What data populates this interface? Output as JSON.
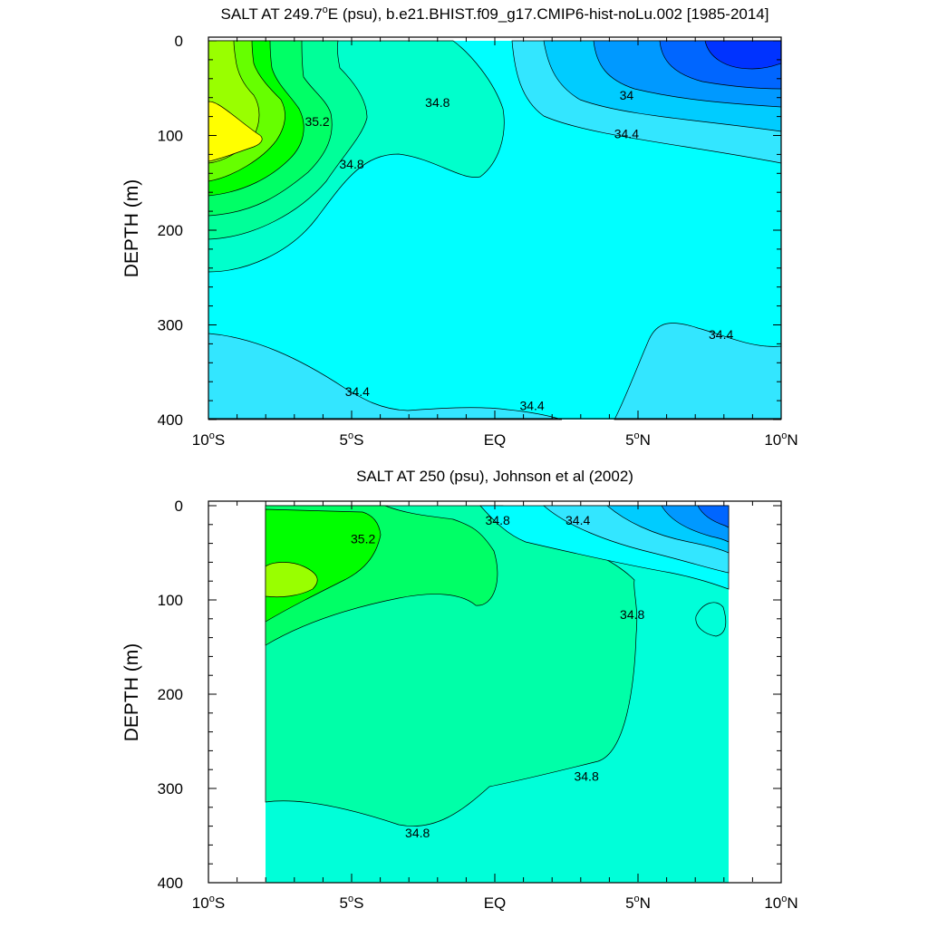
{
  "chart_data": [
    {
      "type": "heatmap",
      "title": "SALT AT 249.7°E (psu), b.e21.BHIST.f09_g17.CMIP6-hist-noLu.002 [1985-2014]",
      "title_parts": {
        "pre": "SALT AT 249.7",
        "deg": "o",
        "post": "E (psu), b.e21.BHIST.f09_g17.CMIP6-hist-noLu.002 [1985-2014]"
      },
      "xlabel": "",
      "ylabel": "DEPTH (m)",
      "xlim": [
        -10,
        10
      ],
      "ylim": [
        0,
        400
      ],
      "y_reversed": true,
      "xticks": [
        {
          "value": -10,
          "num": "10",
          "hemi": "S"
        },
        {
          "value": -5,
          "num": "5",
          "hemi": "S"
        },
        {
          "value": 0,
          "num": "EQ",
          "hemi": ""
        },
        {
          "value": 5,
          "num": "5",
          "hemi": "N"
        },
        {
          "value": 10,
          "num": "10",
          "hemi": "N"
        }
      ],
      "yticks": [
        0,
        100,
        200,
        300,
        400
      ],
      "contour_labels": [
        {
          "text": "34.8",
          "x": -2.0,
          "y": 70
        },
        {
          "text": "35.2",
          "x": -6.2,
          "y": 90
        },
        {
          "text": "34.8",
          "x": -5.0,
          "y": 135
        },
        {
          "text": "34",
          "x": 4.6,
          "y": 62
        },
        {
          "text": "34.4",
          "x": 4.6,
          "y": 103
        },
        {
          "text": "34.4",
          "x": 7.9,
          "y": 315
        },
        {
          "text": "34.4",
          "x": -4.8,
          "y": 375
        },
        {
          "text": "34.4",
          "x": 1.3,
          "y": 390
        }
      ]
    },
    {
      "type": "heatmap",
      "title": "SALT AT 250 (psu), Johnson et al (2002)",
      "xlabel": "",
      "ylabel": "DEPTH (m)",
      "xlim": [
        -10,
        10
      ],
      "ylim": [
        0,
        400
      ],
      "y_reversed": true,
      "data_extent_x": [
        -8,
        8.2
      ],
      "xticks": [
        {
          "value": -10,
          "num": "10",
          "hemi": "S"
        },
        {
          "value": -5,
          "num": "5",
          "hemi": "S"
        },
        {
          "value": 0,
          "num": "EQ",
          "hemi": ""
        },
        {
          "value": 5,
          "num": "5",
          "hemi": "N"
        },
        {
          "value": 10,
          "num": "10",
          "hemi": "N"
        }
      ],
      "yticks": [
        0,
        100,
        200,
        300,
        400
      ],
      "contour_labels": [
        {
          "text": "35.2",
          "x": -4.6,
          "y": 40
        },
        {
          "text": "34.8",
          "x": 0.1,
          "y": 20
        },
        {
          "text": "34.4",
          "x": 2.9,
          "y": 20
        },
        {
          "text": "34.8",
          "x": 4.8,
          "y": 120
        },
        {
          "text": "34.8",
          "x": 3.2,
          "y": 292
        },
        {
          "text": "34.8",
          "x": -2.7,
          "y": 352
        }
      ]
    }
  ]
}
